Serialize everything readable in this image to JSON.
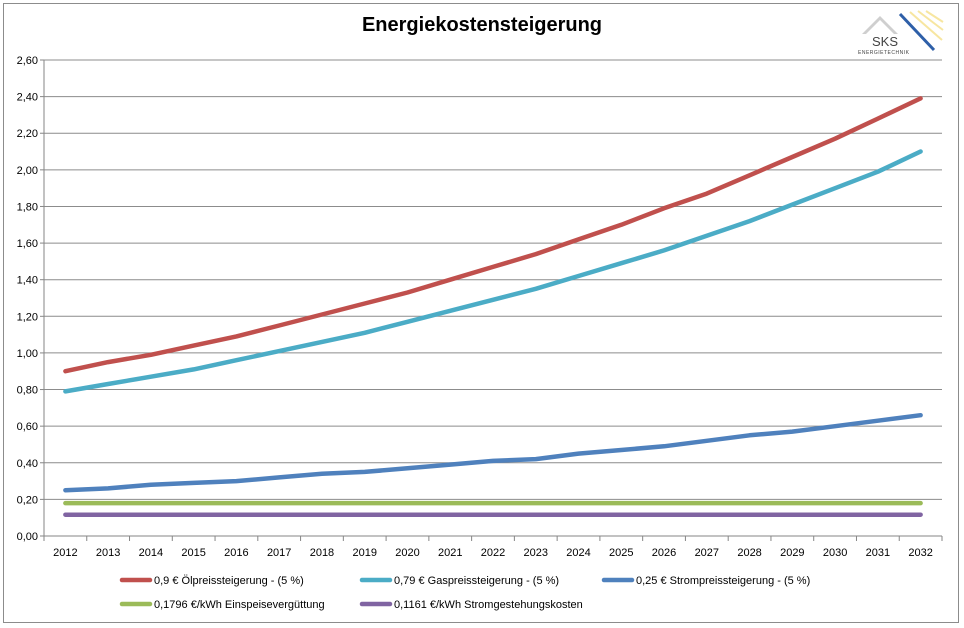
{
  "chart_data": {
    "type": "line",
    "title": "Energiekostensteigerung",
    "xlabel": "",
    "ylabel": "",
    "x": [
      "2012",
      "2013",
      "2014",
      "2015",
      "2016",
      "2017",
      "2018",
      "2019",
      "2020",
      "2021",
      "2022",
      "2023",
      "2024",
      "2025",
      "2026",
      "2027",
      "2028",
      "2029",
      "2030",
      "2031",
      "2032"
    ],
    "ylim": [
      0,
      2.6
    ],
    "yticks": [
      "0,00",
      "0,20",
      "0,40",
      "0,60",
      "0,80",
      "1,00",
      "1,20",
      "1,40",
      "1,60",
      "1,80",
      "2,00",
      "2,20",
      "2,40",
      "2,60"
    ],
    "grid": true,
    "legend_position": "bottom",
    "series": [
      {
        "name": "0,9 € Ölpreissteigerung - (5 %)",
        "color": "#c0504d",
        "values": [
          0.9,
          0.95,
          0.99,
          1.04,
          1.09,
          1.15,
          1.21,
          1.27,
          1.33,
          1.4,
          1.47,
          1.54,
          1.62,
          1.7,
          1.79,
          1.87,
          1.97,
          2.07,
          2.17,
          2.28,
          2.39
        ]
      },
      {
        "name": "0,79 € Gaspreissteigerung - (5 %)",
        "color": "#4bacc6",
        "values": [
          0.79,
          0.83,
          0.87,
          0.91,
          0.96,
          1.01,
          1.06,
          1.11,
          1.17,
          1.23,
          1.29,
          1.35,
          1.42,
          1.49,
          1.56,
          1.64,
          1.72,
          1.81,
          1.9,
          1.99,
          2.1
        ]
      },
      {
        "name": "0,25 € Strompreissteigerung - (5 %)",
        "color": "#4f81bd",
        "values": [
          0.25,
          0.26,
          0.28,
          0.29,
          0.3,
          0.32,
          0.34,
          0.35,
          0.37,
          0.39,
          0.41,
          0.42,
          0.45,
          0.47,
          0.49,
          0.52,
          0.55,
          0.57,
          0.6,
          0.63,
          0.66
        ]
      },
      {
        "name": "0,1796 €/kWh Einspeisevergüttung",
        "color": "#9bbb59",
        "values": [
          0.1796,
          0.1796,
          0.1796,
          0.1796,
          0.1796,
          0.1796,
          0.1796,
          0.1796,
          0.1796,
          0.1796,
          0.1796,
          0.1796,
          0.1796,
          0.1796,
          0.1796,
          0.1796,
          0.1796,
          0.1796,
          0.1796,
          0.1796,
          0.1796
        ]
      },
      {
        "name": "0,1161 €/kWh Stromgestehungskosten",
        "color": "#8064a2",
        "values": [
          0.1161,
          0.1161,
          0.1161,
          0.1161,
          0.1161,
          0.1161,
          0.1161,
          0.1161,
          0.1161,
          0.1161,
          0.1161,
          0.1161,
          0.1161,
          0.1161,
          0.1161,
          0.1161,
          0.1161,
          0.1161,
          0.1161,
          0.1161,
          0.1161
        ]
      }
    ]
  },
  "logo": {
    "text": "SKS",
    "subtext": "ENERGIETECHNIK",
    "color": "#2e5fa8"
  }
}
